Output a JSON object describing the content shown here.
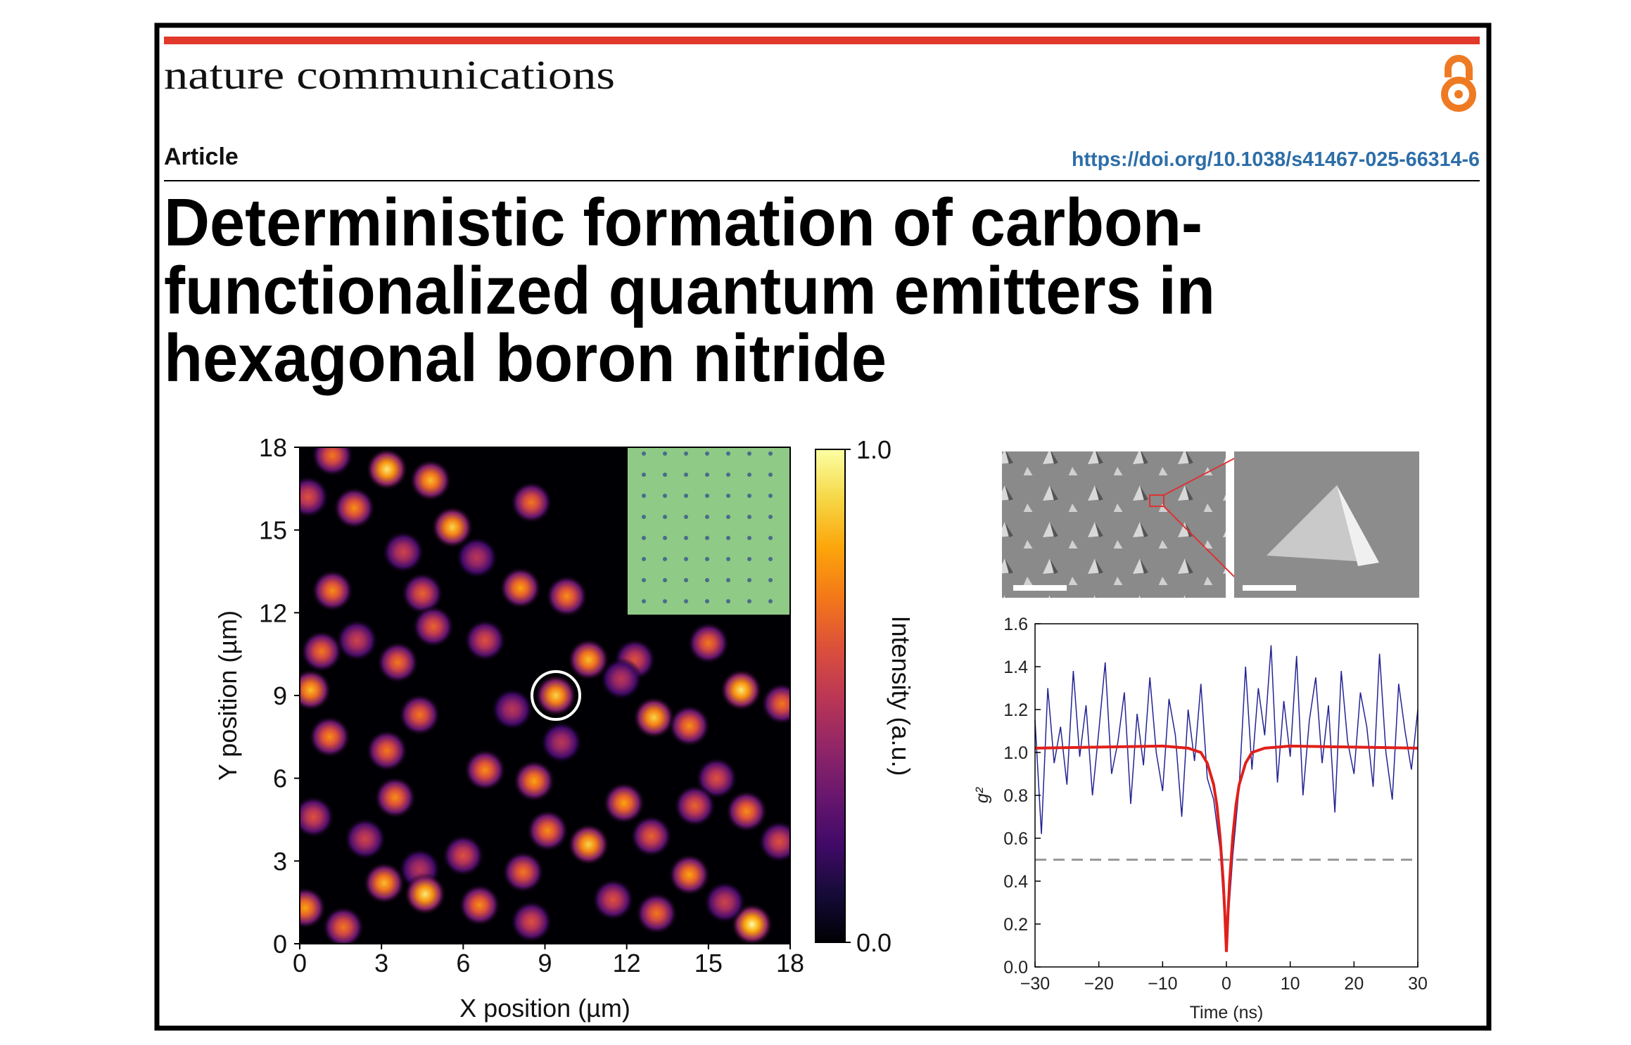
{
  "header": {
    "journal": "nature communications",
    "article_type": "Article",
    "doi": "https://doi.org/10.1038/s41467-025-66314-6"
  },
  "title_lines": [
    "Deterministic formation of carbon-",
    "functionalized quantum emitters in",
    "hexagonal boron nitride"
  ],
  "chart_data": [
    {
      "type": "scatter",
      "x_label": "X position (µm)",
      "y_label": "Y position (µm)",
      "xlim": [
        0,
        18
      ],
      "ylim": [
        0,
        18
      ],
      "xticks": [
        0,
        3,
        6,
        9,
        12,
        15,
        18
      ],
      "yticks": [
        0,
        3,
        6,
        9,
        12,
        15,
        18
      ],
      "colormap": "inferno",
      "colorbar": {
        "label": "Intensity (a.u.)",
        "lim": [
          0,
          1
        ],
        "ticks": [
          {
            "value": 0,
            "label": "0.0"
          },
          {
            "value": 1,
            "label": "1.0"
          }
        ]
      },
      "x": [
        3.2,
        4.8,
        1.2,
        2.0,
        5.6,
        8.5,
        0.3,
        3.8,
        6.5,
        1.2,
        4.5,
        8.1,
        9.8,
        2.1,
        4.9,
        6.8,
        0.8,
        3.6,
        10.6,
        12.3,
        15.0,
        11.8,
        0.4,
        9.4,
        16.2,
        17.7,
        4.4,
        7.8,
        13.0,
        14.3,
        1.1,
        3.2,
        9.6,
        6.8,
        8.6,
        15.3,
        3.5,
        11.9,
        14.5,
        0.5,
        16.4,
        9.1,
        10.6,
        2.4,
        6.0,
        12.9,
        17.6,
        4.4,
        8.2,
        14.3,
        3.1,
        4.6,
        0.2,
        6.6,
        11.5,
        13.1,
        16.6,
        1.6,
        8.5,
        15.6
      ],
      "y": [
        17.2,
        16.8,
        17.7,
        15.8,
        15.1,
        16.0,
        16.2,
        14.2,
        14.0,
        12.8,
        12.7,
        12.9,
        12.6,
        11.0,
        11.5,
        11.0,
        10.6,
        10.2,
        10.3,
        10.3,
        10.9,
        9.6,
        9.2,
        9.0,
        9.2,
        8.7,
        8.3,
        8.5,
        8.2,
        7.9,
        7.5,
        7.0,
        7.3,
        6.3,
        5.9,
        6.0,
        5.3,
        5.1,
        5.0,
        4.6,
        4.8,
        4.1,
        3.6,
        3.8,
        3.2,
        3.9,
        3.7,
        2.7,
        2.6,
        2.5,
        2.2,
        1.8,
        1.3,
        1.4,
        1.6,
        1.1,
        0.7,
        0.6,
        0.8,
        1.5
      ],
      "values": [
        0.95,
        0.85,
        0.7,
        0.75,
        0.9,
        0.7,
        0.6,
        0.55,
        0.5,
        0.75,
        0.65,
        0.8,
        0.75,
        0.55,
        0.65,
        0.6,
        0.7,
        0.7,
        0.85,
        0.6,
        0.7,
        0.5,
        0.85,
        0.9,
        0.95,
        0.7,
        0.7,
        0.5,
        0.9,
        0.75,
        0.75,
        0.7,
        0.5,
        0.75,
        0.8,
        0.6,
        0.75,
        0.8,
        0.65,
        0.6,
        0.75,
        0.75,
        0.9,
        0.55,
        0.6,
        0.65,
        0.6,
        0.5,
        0.7,
        0.8,
        0.85,
        0.95,
        0.8,
        0.75,
        0.6,
        0.7,
        1.0,
        0.7,
        0.6,
        0.55
      ]
    },
    {
      "type": "line",
      "x_label": "Time (ns)",
      "y_label": "g²",
      "xlim": [
        -30,
        30
      ],
      "ylim": [
        0,
        1.6
      ],
      "xticks": [
        {
          "value": -30,
          "label": "−30"
        },
        {
          "value": -20,
          "label": "−20"
        },
        {
          "value": -10,
          "label": "−10"
        },
        0,
        10,
        20,
        30
      ],
      "yticks": [
        {
          "value": 0,
          "label": "0.0"
        },
        {
          "value": 0.2,
          "label": "0.2"
        },
        {
          "value": 0.4,
          "label": "0.4"
        },
        {
          "value": 0.6,
          "label": "0.6"
        },
        {
          "value": 0.8,
          "label": "0.8"
        },
        {
          "value": 1,
          "label": "1.0"
        },
        {
          "value": 1.2,
          "label": "1.2"
        },
        {
          "value": 1.4,
          "label": "1.4"
        },
        {
          "value": 1.6,
          "label": "1.6"
        }
      ],
      "reference_line": 0.5,
      "series": [
        {
          "color": "#232394",
          "x": [
            -30,
            -29,
            -28,
            -27,
            -26,
            -25,
            -24,
            -23,
            -22,
            -21,
            -20,
            -19,
            -18,
            -17,
            -16,
            -15,
            -14,
            -13,
            -12,
            -11,
            -10,
            -9,
            -8,
            -7,
            -6,
            -5,
            -4,
            -3,
            -2,
            -1,
            0,
            1,
            2,
            3,
            4,
            5,
            6,
            7,
            8,
            9,
            10,
            11,
            12,
            13,
            14,
            15,
            16,
            17,
            18,
            19,
            20,
            21,
            22,
            23,
            24,
            25,
            26,
            27,
            28,
            29,
            30
          ],
          "values": [
            1.15,
            0.62,
            1.3,
            0.95,
            1.12,
            0.85,
            1.38,
            0.98,
            1.22,
            0.8,
            1.1,
            1.42,
            0.9,
            1.05,
            1.28,
            0.76,
            1.18,
            0.94,
            1.35,
            1.0,
            0.82,
            1.25,
            1.08,
            0.7,
            1.2,
            0.96,
            1.32,
            0.88,
            0.78,
            0.55,
            0.1,
            0.52,
            0.84,
            1.4,
            0.92,
            1.3,
            1.08,
            1.5,
            0.86,
            1.24,
            0.98,
            1.45,
            0.8,
            1.15,
            1.35,
            0.95,
            1.22,
            0.72,
            1.38,
            1.05,
            0.9,
            1.28,
            1.12,
            0.84,
            1.46,
            1.0,
            0.78,
            1.32,
            1.1,
            0.92,
            1.2
          ]
        },
        {
          "color": "#e0201b",
          "x": [
            -30,
            -10,
            -6,
            -4,
            -3,
            -2,
            -1.5,
            -1,
            -0.5,
            -0.25,
            0,
            0.25,
            0.5,
            1,
            1.5,
            2,
            3,
            4,
            6,
            10,
            30
          ],
          "values": [
            1.02,
            1.03,
            1.02,
            1.0,
            0.95,
            0.85,
            0.755,
            0.61,
            0.4,
            0.25,
            0.07,
            0.25,
            0.4,
            0.61,
            0.755,
            0.85,
            0.95,
            1.0,
            1.02,
            1.03,
            1.02
          ]
        }
      ]
    }
  ]
}
